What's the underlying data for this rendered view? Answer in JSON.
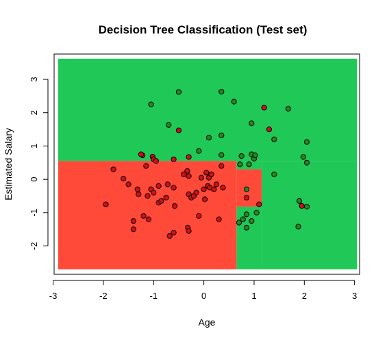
{
  "chart_data": {
    "type": "scatter",
    "title": "Decision Tree Classification (Test set)",
    "xlabel": "Age",
    "ylabel": "Estimated Salary",
    "xlim": [
      -2.98,
      3.1
    ],
    "ylim": [
      -2.85,
      3.76
    ],
    "xticks": [
      -3,
      -2,
      -1,
      0,
      1,
      2,
      3
    ],
    "yticks": [
      -2,
      -1,
      0,
      1,
      2,
      3
    ],
    "grid": false,
    "colors": {
      "region_0": "#ff4a3a",
      "region_1": "#20c858",
      "point_0": "#d40f0f",
      "point_1": "#1f8a1f",
      "point_edge": "#000000",
      "frame": "#000000"
    },
    "region_extent": {
      "x": [
        -2.9,
        3.05
      ],
      "y": [
        -2.7,
        3.62
      ]
    },
    "regions_class_0": [
      {
        "x": [
          -2.9,
          0.65
        ],
        "y": [
          -2.7,
          0.55
        ]
      },
      {
        "x": [
          0.65,
          1.15
        ],
        "y": [
          -0.82,
          0.3
        ]
      }
    ],
    "regions_class_1": [
      {
        "x": [
          -2.9,
          3.05
        ],
        "y": [
          0.55,
          3.62
        ]
      },
      {
        "x": [
          0.65,
          1.15
        ],
        "y": [
          0.3,
          0.55
        ]
      },
      {
        "x": [
          1.15,
          3.05
        ],
        "y": [
          -2.7,
          0.55
        ]
      },
      {
        "x": [
          0.65,
          1.15
        ],
        "y": [
          -2.7,
          -0.82
        ]
      }
    ],
    "points": [
      {
        "x": -1.95,
        "y": -0.75,
        "cls": 0
      },
      {
        "x": -1.8,
        "y": 0.3,
        "cls": 0
      },
      {
        "x": -1.6,
        "y": 0.02,
        "cls": 0
      },
      {
        "x": -1.5,
        "y": -0.15,
        "cls": 0
      },
      {
        "x": -1.4,
        "y": -1.5,
        "cls": 0
      },
      {
        "x": -1.4,
        "y": -1.25,
        "cls": 0
      },
      {
        "x": -1.32,
        "y": -0.3,
        "cls": 0
      },
      {
        "x": -1.3,
        "y": -0.45,
        "cls": 0
      },
      {
        "x": -1.2,
        "y": -1.1,
        "cls": 0
      },
      {
        "x": -1.22,
        "y": 0.72,
        "cls": 0
      },
      {
        "x": -1.15,
        "y": 0.4,
        "cls": 0
      },
      {
        "x": -1.12,
        "y": -0.5,
        "cls": 0
      },
      {
        "x": -1.1,
        "y": -1.2,
        "cls": 0
      },
      {
        "x": -1.05,
        "y": -0.3,
        "cls": 0
      },
      {
        "x": -1.02,
        "y": 0.68,
        "cls": 0
      },
      {
        "x": -1.0,
        "y": 0.6,
        "cls": 0
      },
      {
        "x": -1.0,
        "y": -0.4,
        "cls": 0
      },
      {
        "x": -0.95,
        "y": 0.55,
        "cls": 0
      },
      {
        "x": -0.9,
        "y": -0.2,
        "cls": 0
      },
      {
        "x": -0.9,
        "y": -0.7,
        "cls": 0
      },
      {
        "x": -0.85,
        "y": -0.65,
        "cls": 0
      },
      {
        "x": -0.75,
        "y": -0.55,
        "cls": 0
      },
      {
        "x": -0.72,
        "y": -0.15,
        "cls": 0
      },
      {
        "x": -0.68,
        "y": -1.7,
        "cls": 0
      },
      {
        "x": -0.6,
        "y": -0.25,
        "cls": 0
      },
      {
        "x": -0.6,
        "y": -1.6,
        "cls": 0
      },
      {
        "x": -0.58,
        "y": -0.8,
        "cls": 0
      },
      {
        "x": -0.4,
        "y": 0.15,
        "cls": 0
      },
      {
        "x": -0.33,
        "y": 0.25,
        "cls": 0
      },
      {
        "x": -0.32,
        "y": -1.45,
        "cls": 0
      },
      {
        "x": -0.3,
        "y": -1.55,
        "cls": 0
      },
      {
        "x": -0.3,
        "y": 0.1,
        "cls": 0
      },
      {
        "x": -0.3,
        "y": -0.45,
        "cls": 0
      },
      {
        "x": -0.25,
        "y": -0.55,
        "cls": 0
      },
      {
        "x": -0.2,
        "y": -0.5,
        "cls": 0
      },
      {
        "x": -0.15,
        "y": -0.4,
        "cls": 0
      },
      {
        "x": -0.1,
        "y": -1.1,
        "cls": 0
      },
      {
        "x": -0.05,
        "y": 0.05,
        "cls": 0
      },
      {
        "x": 0.0,
        "y": -0.3,
        "cls": 0
      },
      {
        "x": 0.02,
        "y": -0.6,
        "cls": 0
      },
      {
        "x": 0.05,
        "y": 0.2,
        "cls": 0
      },
      {
        "x": 0.08,
        "y": -0.2,
        "cls": 0
      },
      {
        "x": 0.1,
        "y": 0.05,
        "cls": 0
      },
      {
        "x": 0.12,
        "y": -0.25,
        "cls": 0
      },
      {
        "x": 0.15,
        "y": 0.15,
        "cls": 0
      },
      {
        "x": 0.2,
        "y": -0.3,
        "cls": 0
      },
      {
        "x": 0.25,
        "y": -0.15,
        "cls": 0
      },
      {
        "x": 0.3,
        "y": -1.2,
        "cls": 0
      },
      {
        "x": 0.35,
        "y": 0.4,
        "cls": 0
      },
      {
        "x": 0.38,
        "y": -0.25,
        "cls": 0
      },
      {
        "x": 1.1,
        "y": -0.75,
        "cls": 0
      },
      {
        "x": -1.25,
        "y": 0.75,
        "cls": 0
      },
      {
        "x": -0.6,
        "y": 0.6,
        "cls": 0
      },
      {
        "x": -0.5,
        "y": 1.47,
        "cls": 0
      },
      {
        "x": -0.3,
        "y": 0.67,
        "cls": 0
      },
      {
        "x": 1.2,
        "y": 2.15,
        "cls": 0
      },
      {
        "x": 1.3,
        "y": 1.5,
        "cls": 0
      },
      {
        "x": 1.95,
        "y": -0.8,
        "cls": 0
      },
      {
        "x": 0.85,
        "y": -0.55,
        "cls": 0
      },
      {
        "x": -1.05,
        "y": 2.25,
        "cls": 1
      },
      {
        "x": -0.5,
        "y": 2.62,
        "cls": 1
      },
      {
        "x": 0.35,
        "y": 2.63,
        "cls": 1
      },
      {
        "x": 0.6,
        "y": 2.33,
        "cls": 1
      },
      {
        "x": 1.68,
        "y": 2.12,
        "cls": 1
      },
      {
        "x": -0.7,
        "y": 1.63,
        "cls": 1
      },
      {
        "x": 0.35,
        "y": 1.32,
        "cls": 1
      },
      {
        "x": 0.95,
        "y": 1.68,
        "cls": 1
      },
      {
        "x": 0.1,
        "y": 1.25,
        "cls": 1
      },
      {
        "x": 1.4,
        "y": 1.2,
        "cls": 1
      },
      {
        "x": -0.1,
        "y": 0.85,
        "cls": 1
      },
      {
        "x": 0.75,
        "y": 0.7,
        "cls": 1
      },
      {
        "x": 0.95,
        "y": 0.75,
        "cls": 1
      },
      {
        "x": 1.0,
        "y": 0.62,
        "cls": 1
      },
      {
        "x": 1.02,
        "y": 0.72,
        "cls": 1
      },
      {
        "x": 0.72,
        "y": 0.45,
        "cls": 1
      },
      {
        "x": 0.35,
        "y": 0.73,
        "cls": 1
      },
      {
        "x": 0.9,
        "y": 0.45,
        "cls": 1
      },
      {
        "x": 2.05,
        "y": 1.12,
        "cls": 1
      },
      {
        "x": 1.98,
        "y": 0.67,
        "cls": 1
      },
      {
        "x": 2.05,
        "y": 0.5,
        "cls": 1
      },
      {
        "x": 1.4,
        "y": 0.15,
        "cls": 1
      },
      {
        "x": 0.85,
        "y": -0.3,
        "cls": 1
      },
      {
        "x": 0.7,
        "y": -1.3,
        "cls": 1
      },
      {
        "x": 0.78,
        "y": -1.2,
        "cls": 1
      },
      {
        "x": 0.85,
        "y": -1.05,
        "cls": 1
      },
      {
        "x": 0.85,
        "y": -1.45,
        "cls": 1
      },
      {
        "x": 0.95,
        "y": -1.25,
        "cls": 1
      },
      {
        "x": 1.05,
        "y": -1.0,
        "cls": 1
      },
      {
        "x": 1.9,
        "y": -0.65,
        "cls": 1
      },
      {
        "x": 1.88,
        "y": -1.42,
        "cls": 1
      },
      {
        "x": 2.05,
        "y": -0.82,
        "cls": 1
      }
    ]
  }
}
